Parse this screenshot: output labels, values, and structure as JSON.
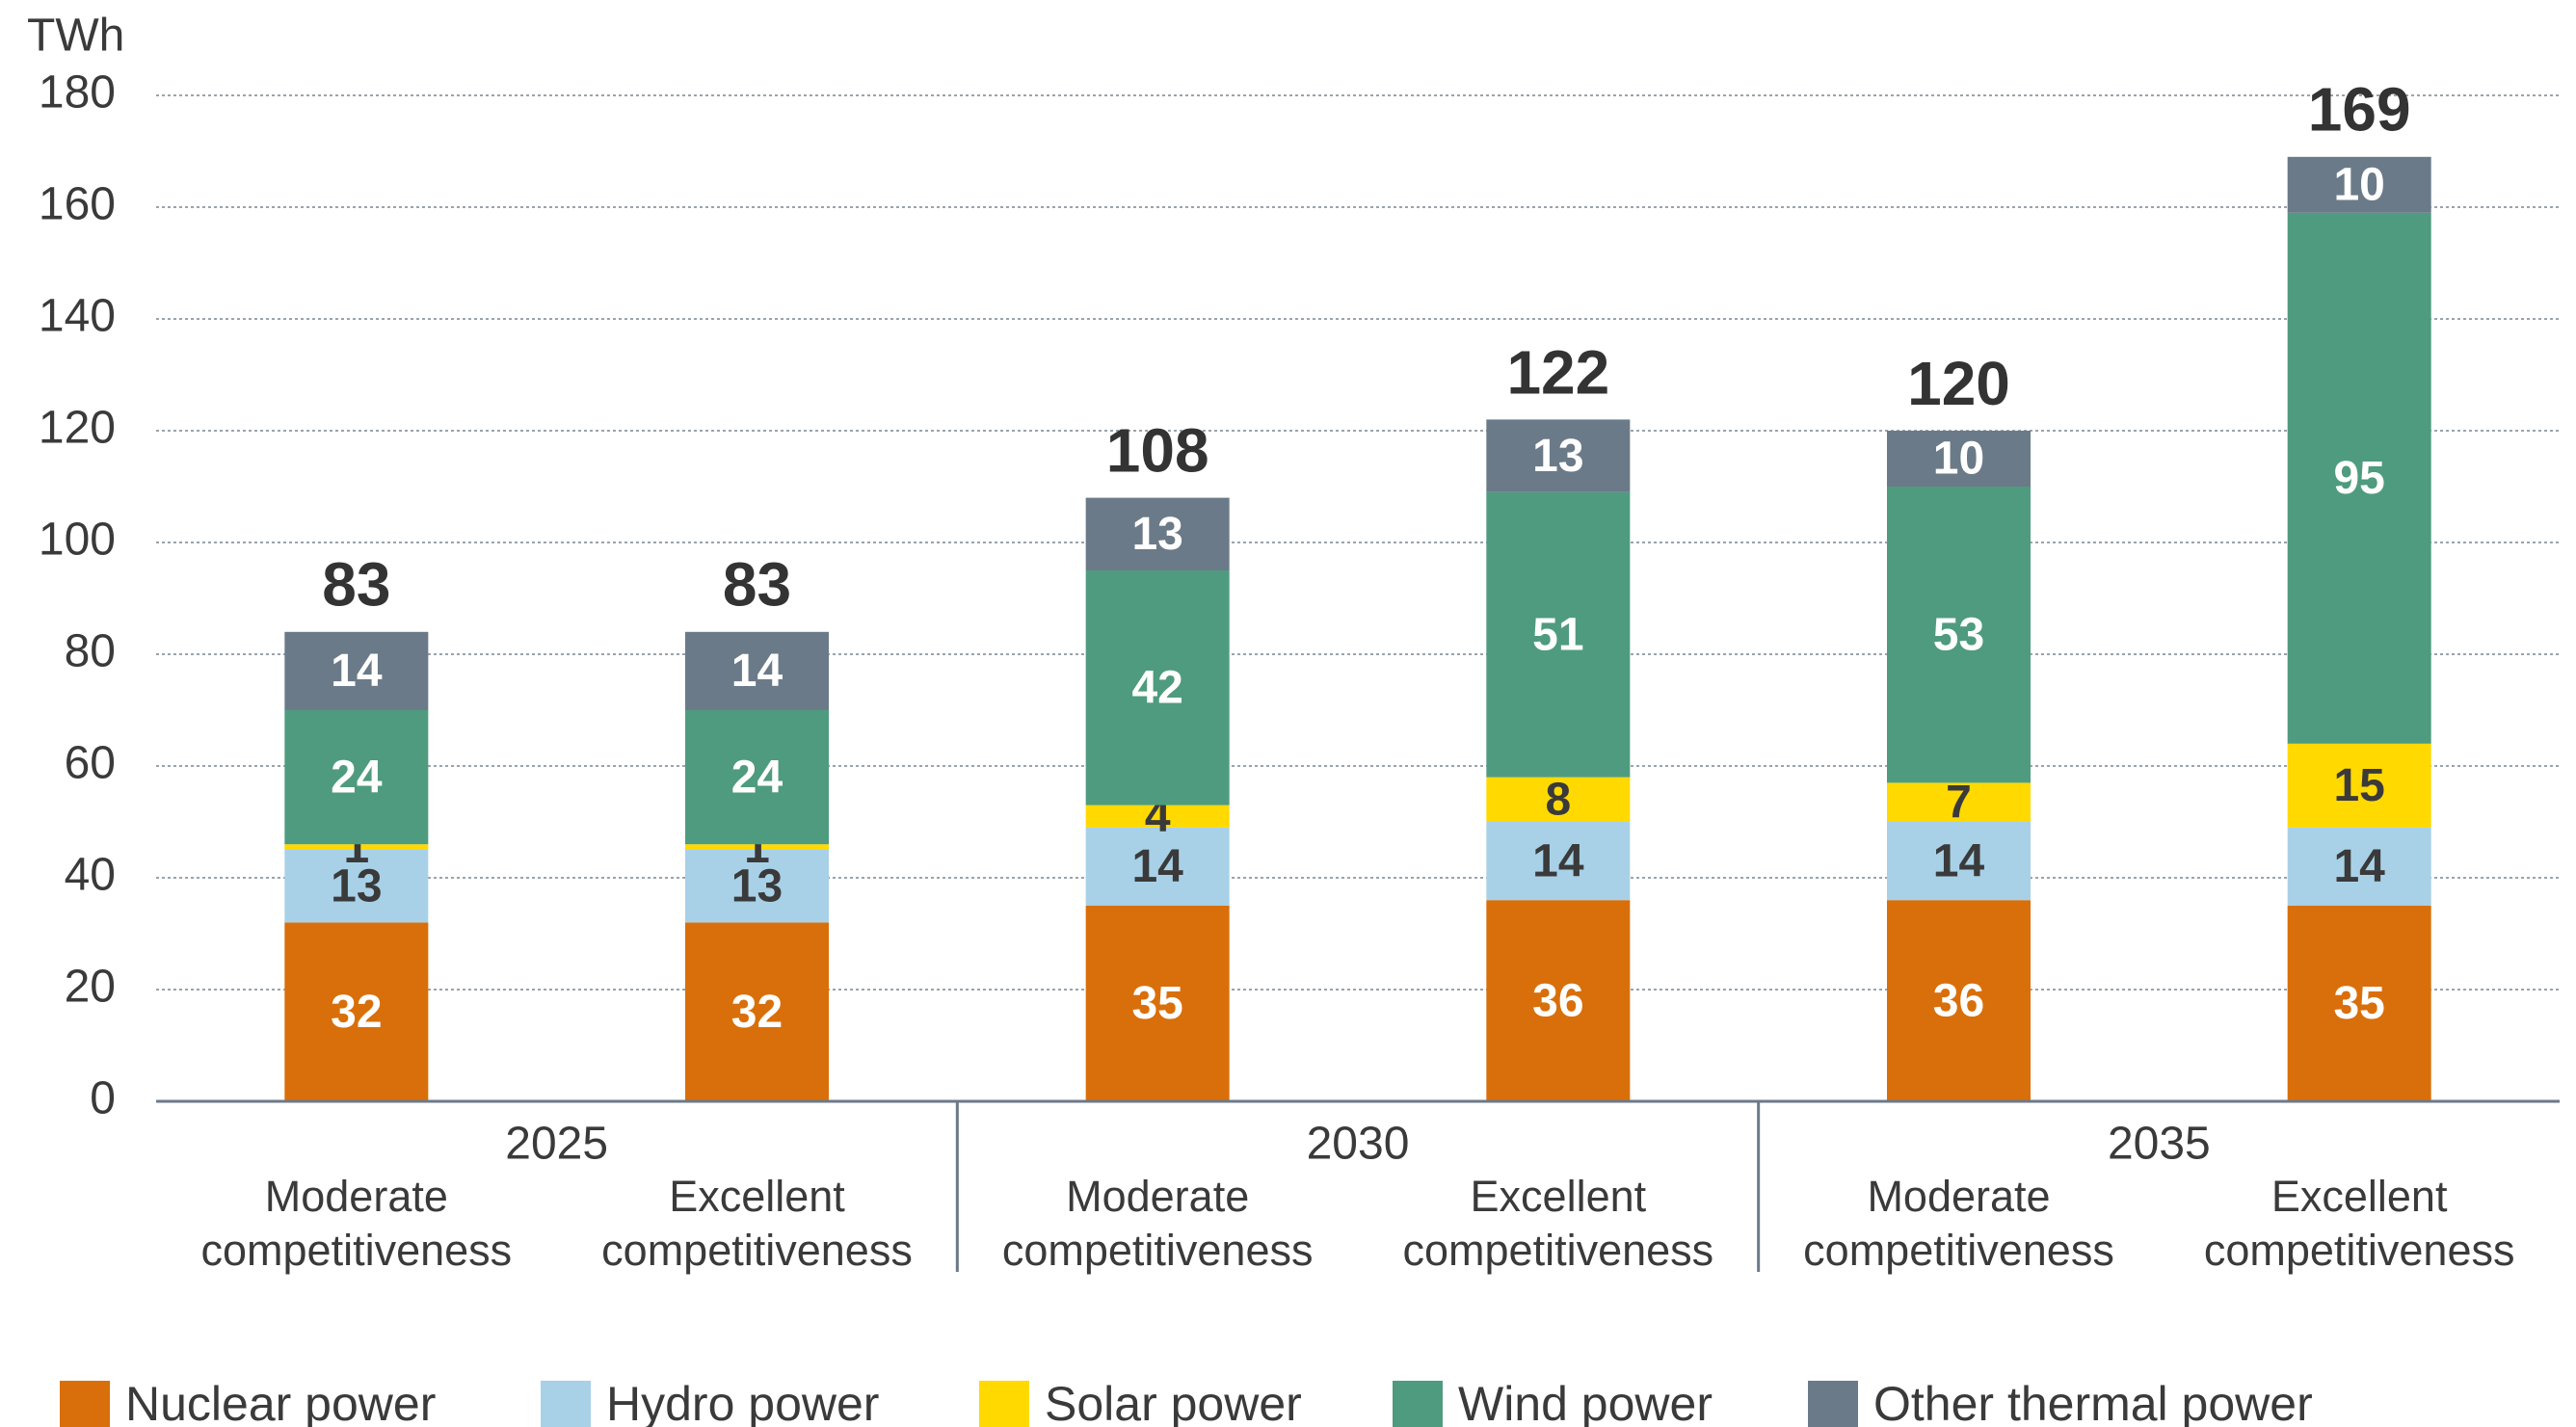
{
  "chart_data": {
    "type": "stacked_bar",
    "y_axis_label": "TWh",
    "groups": [
      "2025",
      "2030",
      "2035"
    ],
    "categories": [
      "Moderate competitiveness",
      "Excellent competitiveness",
      "Moderate competitiveness",
      "Excellent competitiveness",
      "Moderate competitiveness",
      "Excellent competitiveness"
    ],
    "series": [
      {
        "name": "Nuclear power",
        "color": "#d96f0a",
        "values": [
          32,
          32,
          35,
          36,
          36,
          35
        ]
      },
      {
        "name": "Hydro power",
        "color": "#a8d1e7",
        "values": [
          13,
          13,
          14,
          14,
          14,
          14
        ]
      },
      {
        "name": "Solar power",
        "color": "#ffd900",
        "values": [
          1,
          1,
          4,
          8,
          7,
          15
        ]
      },
      {
        "name": "Wind power",
        "color": "#4f9b7f",
        "values": [
          24,
          24,
          42,
          51,
          53,
          95
        ]
      },
      {
        "name": "Other thermal power",
        "color": "#6b7a88",
        "values": [
          14,
          14,
          13,
          13,
          10,
          10
        ]
      }
    ],
    "totals": [
      83,
      83,
      108,
      122,
      120,
      169
    ],
    "ylim": [
      0,
      180
    ],
    "yticks": [
      0,
      20,
      40,
      60,
      80,
      100,
      120,
      140,
      160,
      180
    ],
    "grid": true,
    "legend": "bottom"
  }
}
